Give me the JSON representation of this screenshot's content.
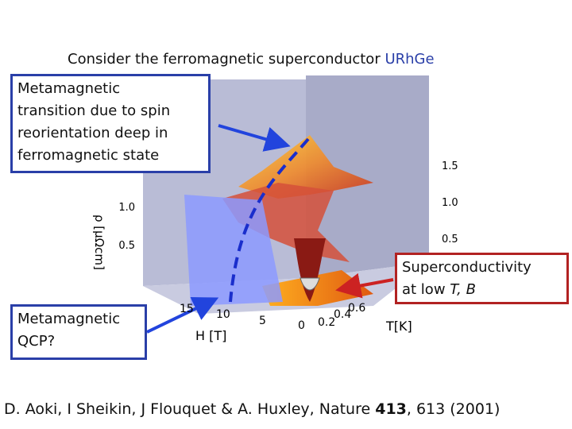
{
  "title": {
    "prefix": "Consider  the ferromagnetic superconductor ",
    "highlight": "URhGe"
  },
  "callouts": [
    {
      "lines": [
        "Metamagnetic",
        "transition due to spin",
        "reorientation deep in",
        "ferromagnetic state"
      ]
    },
    {
      "lines": [
        "Superconductivity"
      ],
      "last_prefix": "at low ",
      "last_italic": "T, B"
    },
    {
      "lines": [
        "Metamagnetic",
        "QCP?"
      ]
    }
  ],
  "figure": {
    "rho_label": "ρ [μΩcm]",
    "left_ticks": [
      "1.0",
      "0.5"
    ],
    "right_ticks": [
      "1.5",
      "1.0",
      "0.5"
    ],
    "h_label": "H [T]",
    "h_ticks": [
      "15",
      "10",
      "5",
      "0"
    ],
    "t_label": "T[K]",
    "t_ticks": [
      "0.2",
      "0.4",
      "0.6"
    ]
  },
  "citation": {
    "authors": "D. Aoki, I Sheikin, J Flouquet  & A. Huxley, Nature ",
    "volume": "413",
    "rest": ", 613 (2001)"
  }
}
